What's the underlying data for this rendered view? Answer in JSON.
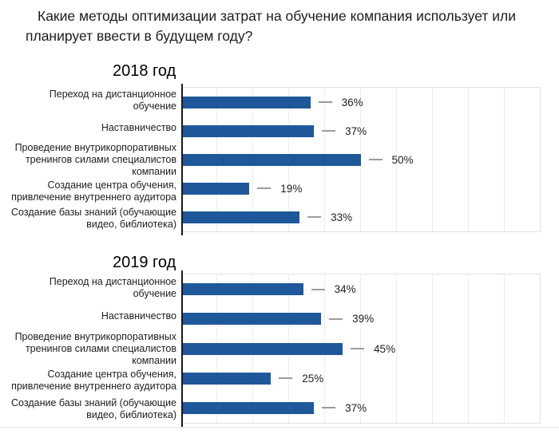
{
  "title": "Какие методы оптимизации затрат на обучение компания использует или планирует ввести в будущем году?",
  "colors": {
    "bar": "#1f589a",
    "axis": "#1a1a1a",
    "grid": "#ececec",
    "dash": "#9b9b9b",
    "text": "#1e1e1e"
  },
  "chart_data": [
    {
      "type": "bar",
      "orientation": "horizontal",
      "title": "2018 год",
      "categories": [
        "Переход на дистанционное обучение",
        "Наставничество",
        "Проведение внутрикорпоративных тренингов силами специалистов компании",
        "Создание центра обучения, привлечение внутреннего аудитора",
        "Создание базы знаний (обучающие видео, библиотека)"
      ],
      "values": [
        36,
        37,
        50,
        19,
        33
      ],
      "value_labels": [
        "36%",
        "37%",
        "50%",
        "19%",
        "33%"
      ],
      "unit": "%",
      "xlim": [
        0,
        100
      ],
      "gridlines": {
        "interval": 10,
        "visible": true
      },
      "axis_tick_labels": "none",
      "legend": "none"
    },
    {
      "type": "bar",
      "orientation": "horizontal",
      "title": "2019 год",
      "categories": [
        "Переход на дистанционное обучение",
        "Наставничество",
        "Проведение внутрикорпоративных тренингов силами специалистов компании",
        "Создание центра обучения, привлечение внутреннего аудитора",
        "Создание базы знаний (обучающие видео, библиотека)"
      ],
      "values": [
        34,
        39,
        45,
        25,
        37
      ],
      "value_labels": [
        "34%",
        "39%",
        "45%",
        "25%",
        "37%"
      ],
      "unit": "%",
      "xlim": [
        0,
        100
      ],
      "gridlines": {
        "interval": 10,
        "visible": true
      },
      "axis_tick_labels": "none",
      "legend": "none"
    }
  ]
}
